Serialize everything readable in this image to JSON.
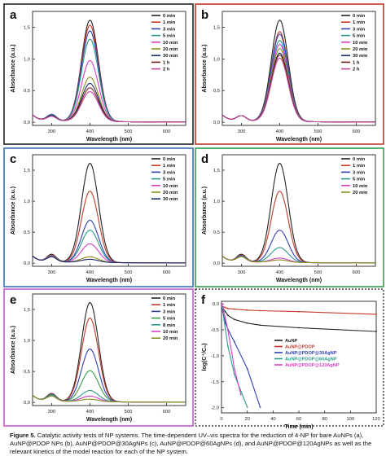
{
  "caption": {
    "label": "Figure 5.",
    "text": "Catalytic activity tests of NP systems. The time-dependent UV–vis spectra for the reduction of 4-NP for bare AuNPs (a), AuNP@PDOP NPs (b), AuNP@PDOP@30AgNPs (c), AuNP@PDOP@60AgNPs (d), and AuNP@PDOP@120AgNPs as well as the relevant kinetics of the model reaction for each of the NP system."
  },
  "colors": {
    "0 min": "#222222",
    "1 min": "#c0392b",
    "3 min": "#2e3fb5",
    "5 min": "#2b9a8a",
    "10 min": "#d63fc9",
    "20 min": "#8a8f1e",
    "30 min": "#1c2a66",
    "1 h": "#7a1f1f",
    "2 h": "#c2449f"
  },
  "chart_data": [
    {
      "id": "a",
      "type": "line",
      "frame_color": "#222222",
      "xlabel": "Wavelength (nm)",
      "ylabel": "Absorbance (a.u.)",
      "xlim": [
        250,
        650
      ],
      "ylim": [
        -0.05,
        1.75
      ],
      "xticks": [
        300,
        400,
        500,
        600
      ],
      "xtick_labels": [
        "300",
        "400",
        "500",
        "600"
      ],
      "yticks": [
        0.0,
        0.5,
        1.0,
        1.5
      ],
      "ytick_labels": [
        "0,0",
        "0,5",
        "1,0",
        "1,5"
      ],
      "series": [
        {
          "name": "0 min",
          "peak": 1.6,
          "p300": 0.1
        },
        {
          "name": "1 min",
          "peak": 1.52,
          "p300": 0.1
        },
        {
          "name": "3 min",
          "peak": 1.43,
          "p300": 0.1
        },
        {
          "name": "5 min",
          "peak": 1.3,
          "p300": 0.09
        },
        {
          "name": "10 min",
          "peak": 0.96,
          "p300": 0.08
        },
        {
          "name": "20 min",
          "peak": 0.7,
          "p300": 0.08
        },
        {
          "name": "30 min",
          "peak": 0.6,
          "p300": 0.08
        },
        {
          "name": "1 h",
          "peak": 0.53,
          "p300": 0.07
        },
        {
          "name": "2 h",
          "peak": 0.47,
          "p300": 0.07
        }
      ]
    },
    {
      "id": "b",
      "type": "line",
      "frame_color": "#c0392b",
      "xlabel": "Wavelength (nm)",
      "ylabel": "Absorbance (a.u.)",
      "xlim": [
        250,
        650
      ],
      "ylim": [
        -0.05,
        1.75
      ],
      "xticks": [
        300,
        400,
        500,
        600
      ],
      "xtick_labels": [
        "300",
        "400",
        "500",
        "600"
      ],
      "yticks": [
        0.0,
        0.5,
        1.0,
        1.5
      ],
      "ytick_labels": [
        "0,0",
        "0,5",
        "1,0",
        "1,5"
      ],
      "series": [
        {
          "name": "0 min",
          "peak": 1.6,
          "p300": 0.08
        },
        {
          "name": "1 min",
          "peak": 1.42,
          "p300": 0.08
        },
        {
          "name": "3 min",
          "peak": 1.38,
          "p300": 0.08
        },
        {
          "name": "5 min",
          "peak": 1.28,
          "p300": 0.08
        },
        {
          "name": "10 min",
          "peak": 1.22,
          "p300": 0.08
        },
        {
          "name": "20 min",
          "peak": 1.15,
          "p300": 0.08
        },
        {
          "name": "30 min",
          "peak": 1.08,
          "p300": 0.08
        },
        {
          "name": "1 h",
          "peak": 1.05,
          "p300": 0.08
        },
        {
          "name": "2 h",
          "peak": 1.0,
          "p300": 0.08
        }
      ]
    },
    {
      "id": "c",
      "type": "line",
      "frame_color": "#3b6fb5",
      "xlabel": "Wavelength (nm)",
      "ylabel": "Absorbance (a.u.)",
      "xlim": [
        250,
        650
      ],
      "ylim": [
        -0.05,
        1.75
      ],
      "xticks": [
        300,
        400,
        500,
        600
      ],
      "xtick_labels": [
        "300",
        "400",
        "500",
        "600"
      ],
      "yticks": [
        0.0,
        0.5,
        1.0,
        1.5
      ],
      "ytick_labels": [
        "0,0",
        "0,5",
        "1,0",
        "1,5"
      ],
      "series": [
        {
          "name": "0 min",
          "peak": 1.6,
          "p300": 0.12
        },
        {
          "name": "1 min",
          "peak": 1.15,
          "p300": 0.11
        },
        {
          "name": "3 min",
          "peak": 0.68,
          "p300": 0.1
        },
        {
          "name": "5 min",
          "peak": 0.52,
          "p300": 0.1
        },
        {
          "name": "10 min",
          "peak": 0.3,
          "p300": 0.09
        },
        {
          "name": "20 min",
          "peak": 0.09,
          "p300": 0.08
        },
        {
          "name": "30 min",
          "peak": 0.05,
          "p300": 0.08
        }
      ]
    },
    {
      "id": "d",
      "type": "line",
      "frame_color": "#3a9a4a",
      "xlabel": "Wavelength (nm)",
      "ylabel": "Absorbance (a.u.)",
      "xlim": [
        250,
        650
      ],
      "ylim": [
        -0.05,
        1.75
      ],
      "xticks": [
        300,
        400,
        500,
        600
      ],
      "xtick_labels": [
        "300",
        "400",
        "500",
        "600"
      ],
      "yticks": [
        0.0,
        0.5,
        1.0,
        1.5
      ],
      "ytick_labels": [
        "0,0",
        "0,5",
        "1,0",
        "1,5"
      ],
      "series": [
        {
          "name": "0 min",
          "peak": 1.6,
          "p300": 0.12
        },
        {
          "name": "1 min",
          "peak": 1.15,
          "p300": 0.11
        },
        {
          "name": "3 min",
          "peak": 0.52,
          "p300": 0.1
        },
        {
          "name": "5 min",
          "peak": 0.24,
          "p300": 0.09
        },
        {
          "name": "10 min",
          "peak": 0.07,
          "p300": 0.08
        },
        {
          "name": "20 min",
          "peak": 0.04,
          "p300": 0.08
        }
      ]
    },
    {
      "id": "e",
      "type": "line",
      "frame_color": "#c25bc9",
      "xlabel": "Wavelength (nm)",
      "ylabel": "Absorbance (a.u.)",
      "xlim": [
        250,
        650
      ],
      "ylim": [
        -0.05,
        1.75
      ],
      "xticks": [
        300,
        400,
        500,
        600
      ],
      "xtick_labels": [
        "300",
        "400",
        "500",
        "600"
      ],
      "yticks": [
        0.0,
        0.5,
        1.0,
        1.5
      ],
      "ytick_labels": [
        "0,0",
        "0,5",
        "1,0",
        "1,5"
      ],
      "series": [
        {
          "name": "0 min",
          "peak": 1.6,
          "p300": 0.12
        },
        {
          "name": "1 min",
          "peak": 1.35,
          "p300": 0.12
        },
        {
          "name": "3 min",
          "peak": 0.85,
          "p300": 0.11
        },
        {
          "name": "5 min",
          "peak": 0.5,
          "p300": 0.1
        },
        {
          "name": "8 min",
          "peak": 0.18,
          "p300": 0.09
        },
        {
          "name": "10 min",
          "peak": 0.09,
          "p300": 0.08
        },
        {
          "name": "20 min",
          "peak": 0.04,
          "p300": 0.08
        }
      ],
      "series_colors": {
        "8 min": "#2b9a8a",
        "10 min": "#d63fc9",
        "20 min": "#8a8f1e",
        "5 min": "#3a9a4a"
      }
    },
    {
      "id": "f",
      "type": "line",
      "frame_color": "#222222",
      "frame_dashed": true,
      "xlabel": "Time (min)",
      "ylabel": "log(C⁺/C₀)",
      "xlim": [
        0,
        120
      ],
      "ylim": [
        -2.1,
        0.05
      ],
      "xticks": [
        0,
        20,
        40,
        60,
        80,
        100,
        120
      ],
      "xtick_labels": [
        "0",
        "20",
        "40",
        "60",
        "80",
        "100",
        "120"
      ],
      "yticks": [
        0.0,
        -0.5,
        -1.0,
        -1.5,
        -2.0
      ],
      "ytick_labels": [
        "0,0",
        "-0,5",
        "-1,0",
        "-1,5",
        "-2,0"
      ],
      "series": [
        {
          "name": "AuNP",
          "color": "#222222",
          "x": [
            0,
            1,
            3,
            5,
            10,
            20,
            30,
            60,
            120
          ],
          "y": [
            0.0,
            -0.08,
            -0.15,
            -0.22,
            -0.3,
            -0.37,
            -0.41,
            -0.46,
            -0.53
          ]
        },
        {
          "name": "AuNP@PDOP",
          "color": "#c0392b",
          "x": [
            0,
            1,
            3,
            5,
            10,
            20,
            30,
            60,
            120
          ],
          "y": [
            0.0,
            -0.05,
            -0.07,
            -0.09,
            -0.1,
            -0.12,
            -0.13,
            -0.15,
            -0.2
          ]
        },
        {
          "name": "AuNP@PDOP@30AgNP",
          "color": "#2e3fb5",
          "x": [
            0,
            1,
            3,
            5,
            10,
            20,
            30
          ],
          "y": [
            0.0,
            -0.15,
            -0.37,
            -0.49,
            -0.73,
            -1.25,
            -1.99
          ]
        },
        {
          "name": "AuNP@PDOP@60AgNP",
          "color": "#2b9a8a",
          "x": [
            0,
            1,
            3,
            5,
            10,
            20
          ],
          "y": [
            0.0,
            -0.15,
            -0.49,
            -0.82,
            -1.36,
            -1.99
          ]
        },
        {
          "name": "AuNP@PDOP@120AgNP",
          "color": "#d63fc9",
          "x": [
            0,
            1,
            3,
            5,
            8,
            10,
            15
          ],
          "y": [
            0.0,
            -0.07,
            -0.28,
            -0.51,
            -0.95,
            -1.25,
            -1.75
          ]
        }
      ]
    }
  ]
}
